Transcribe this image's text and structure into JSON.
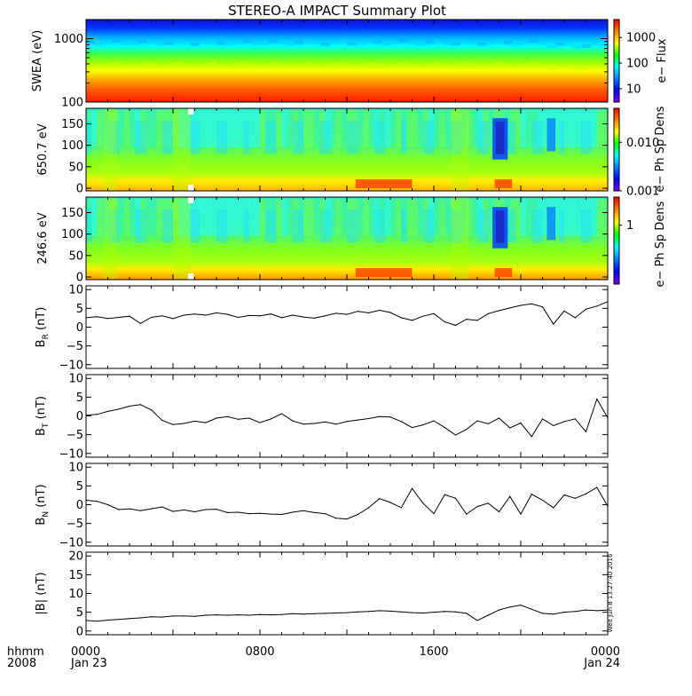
{
  "title": "STEREO-A IMPACT Summary Plot",
  "stamp": "Wed Jun  8 13:27:40 2016",
  "time_axis": {
    "row1_label": "hhmm",
    "row2_label": "2008",
    "ticks": [
      {
        "time": "0000",
        "date": "Jan 23",
        "hour": 0
      },
      {
        "time": "0800",
        "date": "",
        "hour": 8
      },
      {
        "time": "1600",
        "date": "",
        "hour": 16
      },
      {
        "time": "0000",
        "date": "Jan 24",
        "hour": 24
      }
    ],
    "range_hours": [
      0,
      24
    ]
  },
  "colors": {
    "spectrogram_scale": [
      "#ff0000",
      "#ff8000",
      "#ffff00",
      "#00ff00",
      "#00ffff",
      "#0080ff",
      "#0000ff",
      "#8000ff"
    ],
    "line": "#000000"
  },
  "chart_data": [
    {
      "type": "heatmap",
      "ylabel": "SWEA (eV)",
      "yscale": "log",
      "ylim": [
        100,
        2000
      ],
      "yticks": [
        100,
        1000
      ],
      "ytick_labels": [
        "100",
        "1000"
      ],
      "colorbar": {
        "label": "e− Flux",
        "scale": "log",
        "ticks": [
          "10",
          "100",
          "1000"
        ],
        "tick_values": [
          10,
          100,
          1000
        ],
        "range": [
          3,
          5000
        ]
      },
      "description_values": {
        "high_energy_level": "low flux (blue) above ~1200 eV",
        "low_energy_level": "high flux (red) below ~250 eV"
      }
    },
    {
      "type": "heatmap",
      "ylabel": "650.7 eV",
      "ylim": [
        0,
        180
      ],
      "yticks": [
        0,
        50,
        100,
        150
      ],
      "ytick_labels": [
        "0",
        "50",
        "100",
        "150"
      ],
      "colorbar": {
        "label": "e− Ph Sp Dens",
        "scale": "log",
        "ticks": [
          "0.001",
          "0.010"
        ],
        "tick_values": [
          0.001,
          0.01
        ],
        "range": [
          0.001,
          0.05
        ]
      }
    },
    {
      "type": "heatmap",
      "ylabel": "246.6 eV",
      "ylim": [
        0,
        180
      ],
      "yticks": [
        0,
        50,
        100,
        150
      ],
      "ytick_labels": [
        "0",
        "50",
        "100",
        "150"
      ],
      "colorbar": {
        "label": "e− Ph Sp Dens",
        "scale": "log",
        "ticks": [
          "1"
        ],
        "tick_values": [
          1
        ],
        "range": [
          0.1,
          3
        ]
      }
    },
    {
      "type": "line",
      "ylabel_main": "B",
      "ylabel_sub": "R",
      "ylabel_unit": "(nT)",
      "ylim": [
        -11,
        11
      ],
      "yticks": [
        -10,
        -5,
        0,
        5,
        10
      ],
      "ytick_labels": [
        "−10",
        "−5",
        "0",
        "5",
        "10"
      ],
      "x_hours": [
        0,
        0.5,
        1,
        1.5,
        2,
        2.5,
        3,
        3.5,
        4,
        4.5,
        5,
        5.5,
        6,
        6.5,
        7,
        7.5,
        8,
        8.5,
        9,
        9.5,
        10,
        10.5,
        11,
        11.5,
        12,
        12.5,
        13,
        13.5,
        14,
        14.5,
        15,
        15.5,
        16,
        16.5,
        17,
        17.5,
        18,
        18.5,
        19,
        19.5,
        20,
        20.5,
        21,
        21.5,
        22,
        22.5,
        23,
        23.5,
        24
      ],
      "values": [
        2.5,
        2.8,
        2.3,
        2.6,
        2.9,
        1,
        2.6,
        3,
        2.3,
        3.2,
        3.5,
        3.2,
        3.8,
        3.4,
        2.6,
        3.1,
        3,
        3.5,
        2.5,
        3.2,
        2.7,
        2.4,
        3,
        3.7,
        3.4,
        4.2,
        3.8,
        4.5,
        3.9,
        2.5,
        1.8,
        2.9,
        3.6,
        1.4,
        0.5,
        2.1,
        1.8,
        3.6,
        4.4,
        5.1,
        5.8,
        6.2,
        5.4,
        0.8,
        4.3,
        2.5,
        4.8,
        5.6,
        6.8
      ]
    },
    {
      "type": "line",
      "ylabel_main": "B",
      "ylabel_sub": "T",
      "ylabel_unit": "(nT)",
      "ylim": [
        -11,
        11
      ],
      "yticks": [
        -10,
        -5,
        0,
        5,
        10
      ],
      "ytick_labels": [
        "−10",
        "−5",
        "0",
        "5",
        "10"
      ],
      "x_hours": [
        0,
        0.5,
        1,
        1.5,
        2,
        2.5,
        3,
        3.5,
        4,
        4.5,
        5,
        5.5,
        6,
        6.5,
        7,
        7.5,
        8,
        8.5,
        9,
        9.5,
        10,
        10.5,
        11,
        11.5,
        12,
        12.5,
        13,
        13.5,
        14,
        14.5,
        15,
        15.5,
        16,
        16.5,
        17,
        17.5,
        18,
        18.5,
        19,
        19.5,
        20,
        20.5,
        21,
        21.5,
        22,
        22.5,
        23,
        23.5,
        24
      ],
      "values": [
        0.2,
        0.4,
        1.2,
        1.8,
        2.6,
        3,
        1.6,
        -1.2,
        -2.3,
        -2,
        -1.4,
        -1.8,
        -0.6,
        -0.2,
        -0.9,
        -0.6,
        -1.8,
        -0.8,
        0.6,
        -1.3,
        -2.2,
        -2,
        -1.6,
        -2.2,
        -1.5,
        -1.1,
        -0.7,
        -0.2,
        -0.3,
        -1.5,
        -3.1,
        -2.4,
        -1.3,
        -3.1,
        -5.1,
        -3.6,
        -1.3,
        -2.1,
        -0.6,
        -3.2,
        -1.9,
        -5.5,
        -0.8,
        -2.6,
        -1.5,
        -0.8,
        -4.2,
        4.5,
        -0.5
      ]
    },
    {
      "type": "line",
      "ylabel_main": "B",
      "ylabel_sub": "N",
      "ylabel_unit": "(nT)",
      "ylim": [
        -11,
        11
      ],
      "yticks": [
        -10,
        -5,
        0,
        5,
        10
      ],
      "ytick_labels": [
        "−10",
        "−5",
        "0",
        "5",
        "10"
      ],
      "x_hours": [
        0,
        0.5,
        1,
        1.5,
        2,
        2.5,
        3,
        3.5,
        4,
        4.5,
        5,
        5.5,
        6,
        6.5,
        7,
        7.5,
        8,
        8.5,
        9,
        9.5,
        10,
        10.5,
        11,
        11.5,
        12,
        12.5,
        13,
        13.5,
        14,
        14.5,
        15,
        15.5,
        16,
        16.5,
        17,
        17.5,
        18,
        18.5,
        19,
        19.5,
        20,
        20.5,
        21,
        21.5,
        22,
        22.5,
        23,
        23.5,
        24
      ],
      "values": [
        1.2,
        0.9,
        0,
        -1.3,
        -1.1,
        -1.6,
        -1.1,
        -0.6,
        -1.8,
        -1.4,
        -1.9,
        -1.3,
        -1.2,
        -2.1,
        -2,
        -2.4,
        -2.3,
        -2.5,
        -2.6,
        -2,
        -1.6,
        -2.1,
        -2.4,
        -3.6,
        -3.8,
        -2.6,
        -0.8,
        1.6,
        0.6,
        -0.8,
        4.3,
        0.4,
        -2.4,
        2.7,
        1.7,
        -2.5,
        -0.5,
        0.4,
        -1.9,
        2.2,
        -2.5,
        2.8,
        1.2,
        -0.8,
        2.6,
        1.7,
        2.9,
        4.6,
        -0.4
      ]
    },
    {
      "type": "line",
      "ylabel_main": "|B|",
      "ylabel_sub": "",
      "ylabel_unit": "(nT)",
      "ylim": [
        -1,
        21
      ],
      "yticks": [
        0,
        5,
        10,
        15,
        20
      ],
      "ytick_labels": [
        "0",
        "5",
        "10",
        "15",
        "20"
      ],
      "x_hours": [
        0,
        0.5,
        1,
        1.5,
        2,
        2.5,
        3,
        3.5,
        4,
        4.5,
        5,
        5.5,
        6,
        6.5,
        7,
        7.5,
        8,
        8.5,
        9,
        9.5,
        10,
        10.5,
        11,
        11.5,
        12,
        12.5,
        13,
        13.5,
        14,
        14.5,
        15,
        15.5,
        16,
        16.5,
        17,
        17.5,
        18,
        18.5,
        19,
        19.5,
        20,
        20.5,
        21,
        21.5,
        22,
        22.5,
        23,
        23.5,
        24
      ],
      "values": [
        2.8,
        2.6,
        2.9,
        3.1,
        3.3,
        3.5,
        3.8,
        3.7,
        4,
        4,
        3.9,
        4.2,
        4.3,
        4.2,
        4.3,
        4.2,
        4.4,
        4.3,
        4.4,
        4.6,
        4.5,
        4.6,
        4.7,
        4.8,
        4.9,
        5.1,
        5.2,
        5.4,
        5.3,
        5.1,
        4.9,
        4.8,
        5,
        5.2,
        5.1,
        4.7,
        2.8,
        4.2,
        5.6,
        6.4,
        6.9,
        5.8,
        4.7,
        4.5,
        5,
        5.2,
        5.6,
        5.4,
        5.6
      ]
    }
  ]
}
